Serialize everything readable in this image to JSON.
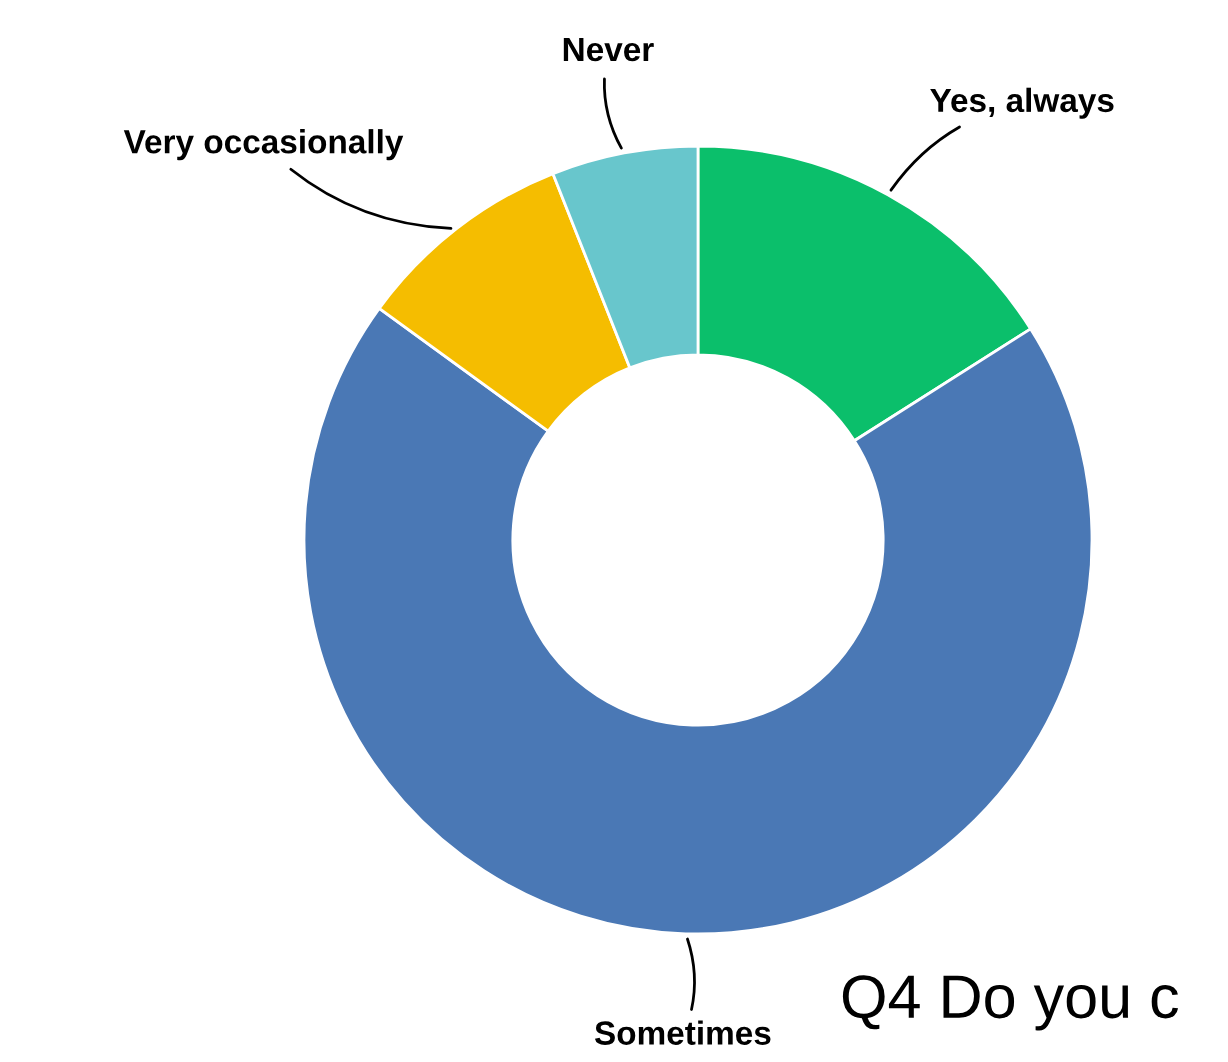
{
  "chart_data": {
    "type": "donut",
    "categories": [
      "Yes, always",
      "Sometimes",
      "Very occasionally",
      "Never"
    ],
    "values": [
      16,
      69,
      9,
      6
    ],
    "colors": [
      "#0bbf6b",
      "#4a78b5",
      "#f5bd00",
      "#68c6cc"
    ],
    "annotations": [
      "Q4 Do you c"
    ],
    "legend": false
  }
}
